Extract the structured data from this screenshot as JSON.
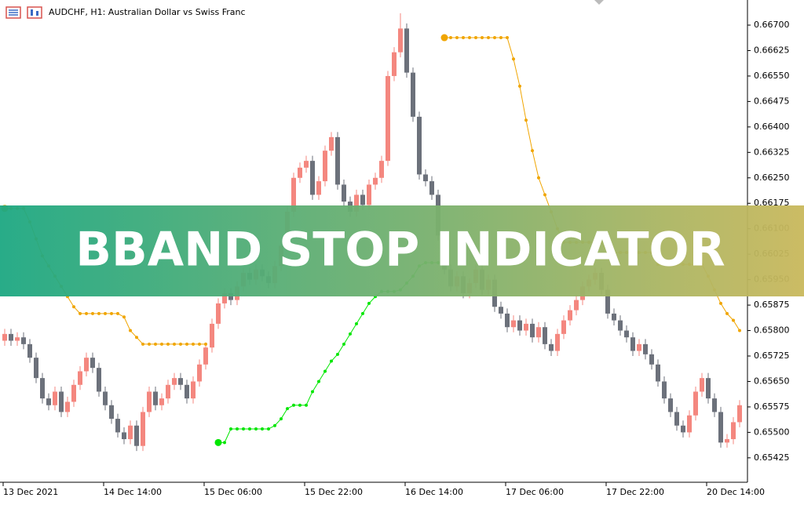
{
  "chart_data": {
    "type": "candlestick",
    "title": "AUDCHF, H1:  Australian Dollar vs Swiss  Franc",
    "banner": "BBAND STOP INDICATOR",
    "categories": [
      "13 Dec 2021",
      null,
      null,
      null,
      null,
      null,
      null,
      null,
      null,
      null,
      null,
      null,
      null,
      null,
      null,
      null,
      "14 Dec 14:00",
      null,
      null,
      null,
      null,
      null,
      null,
      null,
      null,
      null,
      null,
      null,
      null,
      null,
      null,
      null,
      "15 Dec 06:00",
      null,
      null,
      null,
      null,
      null,
      null,
      null,
      null,
      null,
      null,
      null,
      null,
      null,
      null,
      null,
      "15 Dec 22:00",
      null,
      null,
      null,
      null,
      null,
      null,
      null,
      null,
      null,
      null,
      null,
      null,
      null,
      null,
      null,
      "16 Dec 14:00",
      null,
      null,
      null,
      null,
      null,
      null,
      null,
      null,
      null,
      null,
      null,
      null,
      null,
      null,
      null,
      "17 Dec 06:00",
      null,
      null,
      null,
      null,
      null,
      null,
      null,
      null,
      null,
      null,
      null,
      null,
      null,
      null,
      null,
      "17 Dec 22:00",
      null,
      null,
      null,
      null,
      null,
      null,
      null,
      null,
      null,
      null,
      null,
      null,
      null,
      null,
      null,
      "20 Dec 14:00",
      null,
      null,
      null,
      null,
      null
    ],
    "open": [
      0.6577,
      0.6579,
      0.6577,
      0.6578,
      0.6576,
      0.6572,
      0.6566,
      0.656,
      0.6558,
      0.6562,
      0.6556,
      0.6559,
      0.6564,
      0.6568,
      0.6572,
      0.6569,
      0.6562,
      0.6558,
      0.6554,
      0.655,
      0.6548,
      0.6552,
      0.6546,
      0.6556,
      0.6562,
      0.6558,
      0.656,
      0.6564,
      0.6566,
      0.6564,
      0.656,
      0.6565,
      0.657,
      0.6575,
      0.6582,
      0.6588,
      0.6591,
      0.6589,
      0.6593,
      0.6597,
      0.6595,
      0.6598,
      0.6596,
      0.6594,
      0.6599,
      0.6605,
      0.6615,
      0.6625,
      0.6628,
      0.663,
      0.662,
      0.6624,
      0.6633,
      0.6637,
      0.6623,
      0.6618,
      0.6615,
      0.662,
      0.6617,
      0.6623,
      0.6625,
      0.663,
      0.6655,
      0.6662,
      0.6669,
      0.6656,
      0.6643,
      0.6626,
      0.6624,
      0.662,
      0.6608,
      0.6598,
      0.6593,
      0.6596,
      0.6591,
      0.6594,
      0.6598,
      0.6592,
      0.6595,
      0.6587,
      0.6585,
      0.6581,
      0.6583,
      0.658,
      0.6582,
      0.6578,
      0.6581,
      0.6576,
      0.6574,
      0.6579,
      0.6583,
      0.6586,
      0.6589,
      0.6593,
      0.6595,
      0.6597,
      0.6592,
      0.6585,
      0.6583,
      0.658,
      0.6578,
      0.6574,
      0.6576,
      0.6573,
      0.657,
      0.6565,
      0.656,
      0.6556,
      0.6552,
      0.655,
      0.6555,
      0.6562,
      0.6566,
      0.656,
      0.6556,
      0.6547,
      0.6548,
      0.6553
    ],
    "high": [
      0.65805,
      0.65805,
      0.65795,
      0.65795,
      0.65775,
      0.65735,
      0.65675,
      0.65615,
      0.65635,
      0.65635,
      0.65605,
      0.65655,
      0.65695,
      0.65735,
      0.65735,
      0.65705,
      0.65635,
      0.65595,
      0.65555,
      0.65515,
      0.65535,
      0.65535,
      0.65575,
      0.65635,
      0.65635,
      0.65615,
      0.65655,
      0.65675,
      0.65675,
      0.65655,
      0.65665,
      0.65715,
      0.65765,
      0.65835,
      0.65895,
      0.65925,
      0.65925,
      0.65945,
      0.65985,
      0.65985,
      0.65995,
      0.65995,
      0.65975,
      0.66005,
      0.66065,
      0.66165,
      0.66265,
      0.66295,
      0.66315,
      0.66315,
      0.66255,
      0.66345,
      0.66385,
      0.66385,
      0.66245,
      0.66195,
      0.66215,
      0.66215,
      0.66245,
      0.66265,
      0.66315,
      0.66565,
      0.66635,
      0.66735,
      0.66705,
      0.66575,
      0.66445,
      0.66275,
      0.66255,
      0.66215,
      0.66095,
      0.65995,
      0.65975,
      0.65975,
      0.65955,
      0.65995,
      0.65995,
      0.65965,
      0.65965,
      0.65885,
      0.65865,
      0.65845,
      0.65845,
      0.65835,
      0.65835,
      0.65825,
      0.65825,
      0.65775,
      0.65805,
      0.65845,
      0.65875,
      0.65905,
      0.65945,
      0.65965,
      0.65985,
      0.65985,
      0.65935,
      0.65865,
      0.65845,
      0.65815,
      0.65795,
      0.65775,
      0.65775,
      0.65745,
      0.65715,
      0.65665,
      0.65615,
      0.65575,
      0.65535,
      0.65565,
      0.65635,
      0.65675,
      0.65675,
      0.65615,
      0.65575,
      0.65495,
      0.65545,
      0.65595
    ],
    "low": [
      0.65755,
      0.65755,
      0.65755,
      0.65745,
      0.65705,
      0.65645,
      0.65585,
      0.65565,
      0.65565,
      0.65545,
      0.65545,
      0.65575,
      0.65625,
      0.65665,
      0.65675,
      0.65605,
      0.65565,
      0.65525,
      0.65485,
      0.65465,
      0.65465,
      0.65445,
      0.65445,
      0.65545,
      0.65565,
      0.65565,
      0.65585,
      0.65625,
      0.65625,
      0.65585,
      0.65585,
      0.65635,
      0.65685,
      0.65735,
      0.65805,
      0.65865,
      0.65875,
      0.65875,
      0.65915,
      0.65935,
      0.65935,
      0.65945,
      0.65925,
      0.65925,
      0.65975,
      0.66035,
      0.66135,
      0.66235,
      0.66265,
      0.66185,
      0.66185,
      0.66225,
      0.66315,
      0.66215,
      0.66165,
      0.66135,
      0.66135,
      0.66155,
      0.66155,
      0.66215,
      0.66235,
      0.66285,
      0.66535,
      0.66605,
      0.66545,
      0.66415,
      0.66245,
      0.66225,
      0.66185,
      0.66065,
      0.65965,
      0.65915,
      0.65915,
      0.65895,
      0.65895,
      0.65925,
      0.65905,
      0.65905,
      0.65855,
      0.65835,
      0.65795,
      0.65795,
      0.65785,
      0.65785,
      0.65765,
      0.65765,
      0.65745,
      0.65725,
      0.65725,
      0.65775,
      0.65815,
      0.65845,
      0.65875,
      0.65915,
      0.65935,
      0.65905,
      0.65835,
      0.65815,
      0.65785,
      0.65765,
      0.65725,
      0.65725,
      0.65715,
      0.65685,
      0.65635,
      0.65585,
      0.65545,
      0.65505,
      0.65485,
      0.65485,
      0.65535,
      0.65605,
      0.65585,
      0.65545,
      0.65455,
      0.65455,
      0.65465,
      0.65515
    ],
    "close": [
      0.6579,
      0.6577,
      0.6578,
      0.6576,
      0.6572,
      0.6566,
      0.656,
      0.6558,
      0.6562,
      0.6556,
      0.6559,
      0.6564,
      0.6568,
      0.6572,
      0.6569,
      0.6562,
      0.6558,
      0.6554,
      0.655,
      0.6548,
      0.6552,
      0.6546,
      0.6556,
      0.6562,
      0.6558,
      0.656,
      0.6564,
      0.6566,
      0.6564,
      0.656,
      0.6565,
      0.657,
      0.6575,
      0.6582,
      0.6588,
      0.6591,
      0.6589,
      0.6593,
      0.6597,
      0.6595,
      0.6598,
      0.6596,
      0.6594,
      0.6599,
      0.6605,
      0.6615,
      0.6625,
      0.6628,
      0.663,
      0.662,
      0.6624,
      0.6633,
      0.6637,
      0.6623,
      0.6618,
      0.6615,
      0.662,
      0.6617,
      0.6623,
      0.6625,
      0.663,
      0.6655,
      0.6662,
      0.6669,
      0.6656,
      0.6643,
      0.6626,
      0.6624,
      0.662,
      0.6608,
      0.6598,
      0.6593,
      0.6596,
      0.6591,
      0.6594,
      0.6598,
      0.6592,
      0.6595,
      0.6587,
      0.6585,
      0.6581,
      0.6583,
      0.658,
      0.6582,
      0.6578,
      0.6581,
      0.6576,
      0.6574,
      0.6579,
      0.6583,
      0.6586,
      0.6589,
      0.6593,
      0.6595,
      0.6597,
      0.6592,
      0.6585,
      0.6583,
      0.658,
      0.6578,
      0.6574,
      0.6576,
      0.6573,
      0.657,
      0.6565,
      0.656,
      0.6556,
      0.6552,
      0.655,
      0.6555,
      0.6562,
      0.6566,
      0.656,
      0.6556,
      0.6547,
      0.6548,
      0.6553,
      0.6558
    ],
    "up_color": "#f4877f",
    "down_color": "#6c717b",
    "series": [
      {
        "color": "#f0a500",
        "values": [
          0.6616,
          0.6616,
          0.6616,
          0.6616,
          0.6612,
          0.6607,
          0.6602,
          0.6599,
          0.6596,
          0.6593,
          0.659,
          0.6587,
          0.6585,
          0.6585,
          0.6585,
          0.6585,
          0.6585,
          0.6585,
          0.6585,
          0.6584,
          0.658,
          0.6578,
          0.6576,
          0.6576,
          0.6576,
          0.6576,
          0.6576,
          0.6576,
          0.6576,
          0.6576,
          0.6576,
          0.6576,
          0.6576,
          null,
          null,
          null,
          null,
          null,
          null,
          null,
          null,
          null,
          null,
          null,
          null,
          null,
          null,
          null,
          null,
          null,
          null,
          null,
          null,
          null,
          null,
          null,
          null,
          null,
          null,
          null,
          null,
          null,
          null,
          null,
          null,
          null,
          null,
          null,
          null,
          null,
          0.66663,
          0.66663,
          0.66663,
          0.66663,
          0.66663,
          0.66663,
          0.66663,
          0.66663,
          0.66663,
          0.66663,
          0.66663,
          0.666,
          0.6652,
          0.6642,
          0.6633,
          0.6625,
          0.662,
          0.6615,
          0.661,
          0.6606,
          0.6606,
          0.6606,
          0.6606,
          0.6606,
          0.6606,
          0.6606,
          0.6603,
          0.6603,
          0.6603,
          0.6603,
          0.6603,
          0.6603,
          0.6603,
          0.6603,
          0.65995,
          0.65995,
          0.65995,
          0.65995,
          0.65995,
          0.65995,
          0.65995,
          0.65995,
          0.6596,
          0.6592,
          0.6588,
          0.6585,
          0.6583,
          0.658
        ]
      },
      {
        "color": "#00e600",
        "values": [
          null,
          null,
          null,
          null,
          null,
          null,
          null,
          null,
          null,
          null,
          null,
          null,
          null,
          null,
          null,
          null,
          null,
          null,
          null,
          null,
          null,
          null,
          null,
          null,
          null,
          null,
          null,
          null,
          null,
          null,
          null,
          null,
          null,
          null,
          0.6547,
          0.6547,
          0.6551,
          0.6551,
          0.6551,
          0.6551,
          0.6551,
          0.6551,
          0.6551,
          0.6552,
          0.6554,
          0.6557,
          0.6558,
          0.6558,
          0.6558,
          0.6562,
          0.6565,
          0.6568,
          0.6571,
          0.6573,
          0.6576,
          0.6579,
          0.6582,
          0.6585,
          0.6588,
          0.659,
          0.65915,
          0.65915,
          0.65915,
          0.6592,
          0.6594,
          0.6596,
          0.6599,
          0.66,
          0.66,
          0.66,
          null,
          null,
          null,
          null,
          null,
          null,
          null,
          null,
          null,
          null,
          null,
          null,
          null,
          null,
          null,
          null,
          null,
          null,
          null,
          null,
          null,
          null,
          null,
          null,
          null,
          null,
          null,
          null,
          null,
          null,
          null,
          null,
          null,
          null,
          null,
          null,
          null,
          null,
          null,
          null,
          null,
          null,
          null,
          null,
          null,
          null,
          null,
          null
        ]
      }
    ],
    "ylim": [
      0.65353,
      0.66774
    ],
    "yticks": [
      {
        "value": 0.667,
        "label": "0.66700"
      },
      {
        "value": 0.66625,
        "label": "0.66625"
      },
      {
        "value": 0.6655,
        "label": "0.66550"
      },
      {
        "value": 0.66475,
        "label": "0.66475"
      },
      {
        "value": 0.664,
        "label": "0.66400"
      },
      {
        "value": 0.66325,
        "label": "0.66325"
      },
      {
        "value": 0.6625,
        "label": "0.66250"
      },
      {
        "value": 0.66175,
        "label": "0.66175"
      },
      {
        "value": 0.661,
        "label": "0.66100"
      },
      {
        "value": 0.66025,
        "label": "0.66025"
      },
      {
        "value": 0.6595,
        "label": "0.65950"
      },
      {
        "value": 0.65875,
        "label": "0.65875"
      },
      {
        "value": 0.658,
        "label": "0.65800"
      },
      {
        "value": 0.65725,
        "label": "0.65725"
      },
      {
        "value": 0.6565,
        "label": "0.65650"
      },
      {
        "value": 0.65575,
        "label": "0.65575"
      },
      {
        "value": 0.655,
        "label": "0.65500"
      },
      {
        "value": 0.65425,
        "label": "0.65425"
      }
    ],
    "grid": false
  }
}
